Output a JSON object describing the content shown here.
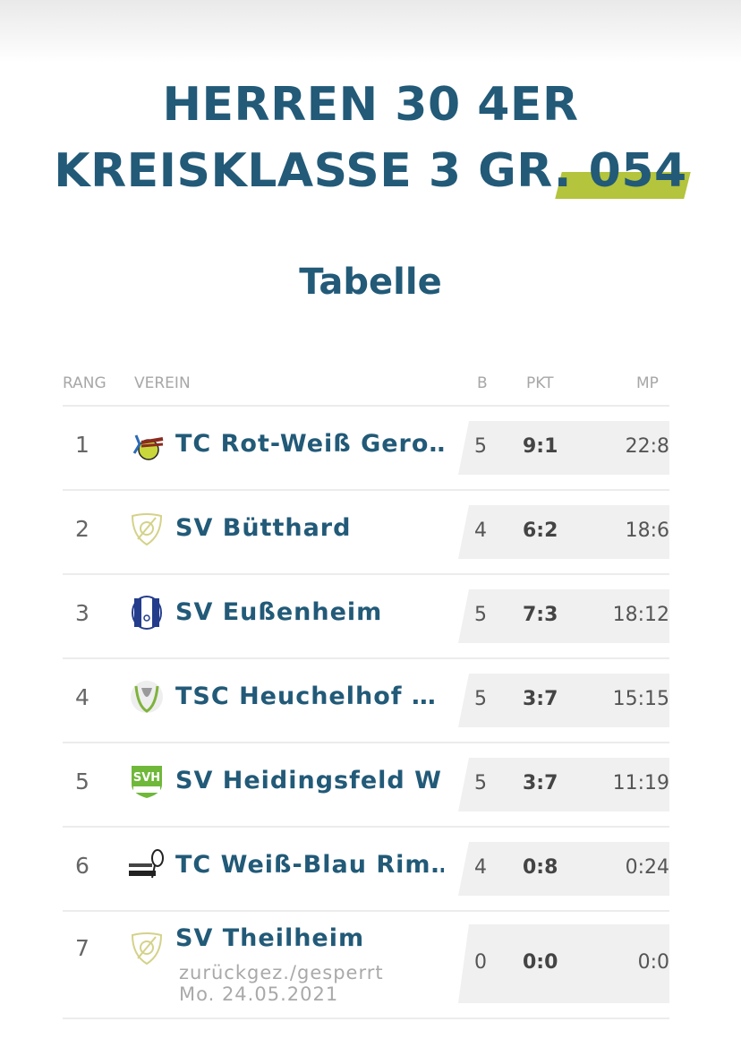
{
  "header": {
    "title_line1": "HERREN 30 4ER",
    "title_line2": "KREISKLASSE 3 GR. 054",
    "subtitle": "Tabelle",
    "accent_color": "#b4c43c",
    "title_color": "#225a78"
  },
  "table": {
    "columns": {
      "rang": "RANG",
      "verein": "VEREIN",
      "b": "B",
      "pkt": "PKT",
      "mp": "MP"
    },
    "rows": [
      {
        "rank": "1",
        "club": "TC Rot-Weiß Gero…",
        "logo": "tc-rot-weiss-logo-icon",
        "b": "5",
        "pkt": "9:1",
        "mp": "22:8"
      },
      {
        "rank": "2",
        "club": "SV Bütthard",
        "logo": "shield-placeholder-icon",
        "b": "4",
        "pkt": "6:2",
        "mp": "18:6"
      },
      {
        "rank": "3",
        "club": "SV Eußenheim",
        "logo": "sv-eussenheim-logo-icon",
        "b": "5",
        "pkt": "7:3",
        "mp": "18:12"
      },
      {
        "rank": "4",
        "club": "TSC Heuchelhof …",
        "logo": "tsc-heuchelhof-logo-icon",
        "b": "5",
        "pkt": "3:7",
        "mp": "15:15"
      },
      {
        "rank": "5",
        "club": "SV Heidingsfeld W…",
        "logo": "sv-heidingsfeld-logo-icon",
        "b": "5",
        "pkt": "3:7",
        "mp": "11:19"
      },
      {
        "rank": "6",
        "club": "TC Weiß-Blau Rim…",
        "logo": "tc-weiss-blau-logo-icon",
        "b": "4",
        "pkt": "0:8",
        "mp": "0:24"
      },
      {
        "rank": "7",
        "club": "SV Theilheim",
        "logo": "shield-placeholder-icon",
        "b": "0",
        "pkt": "0:0",
        "mp": "0:0",
        "note_line1": "zurückgez./gesperrt",
        "note_line2": "Mo. 24.05.2021"
      }
    ]
  }
}
